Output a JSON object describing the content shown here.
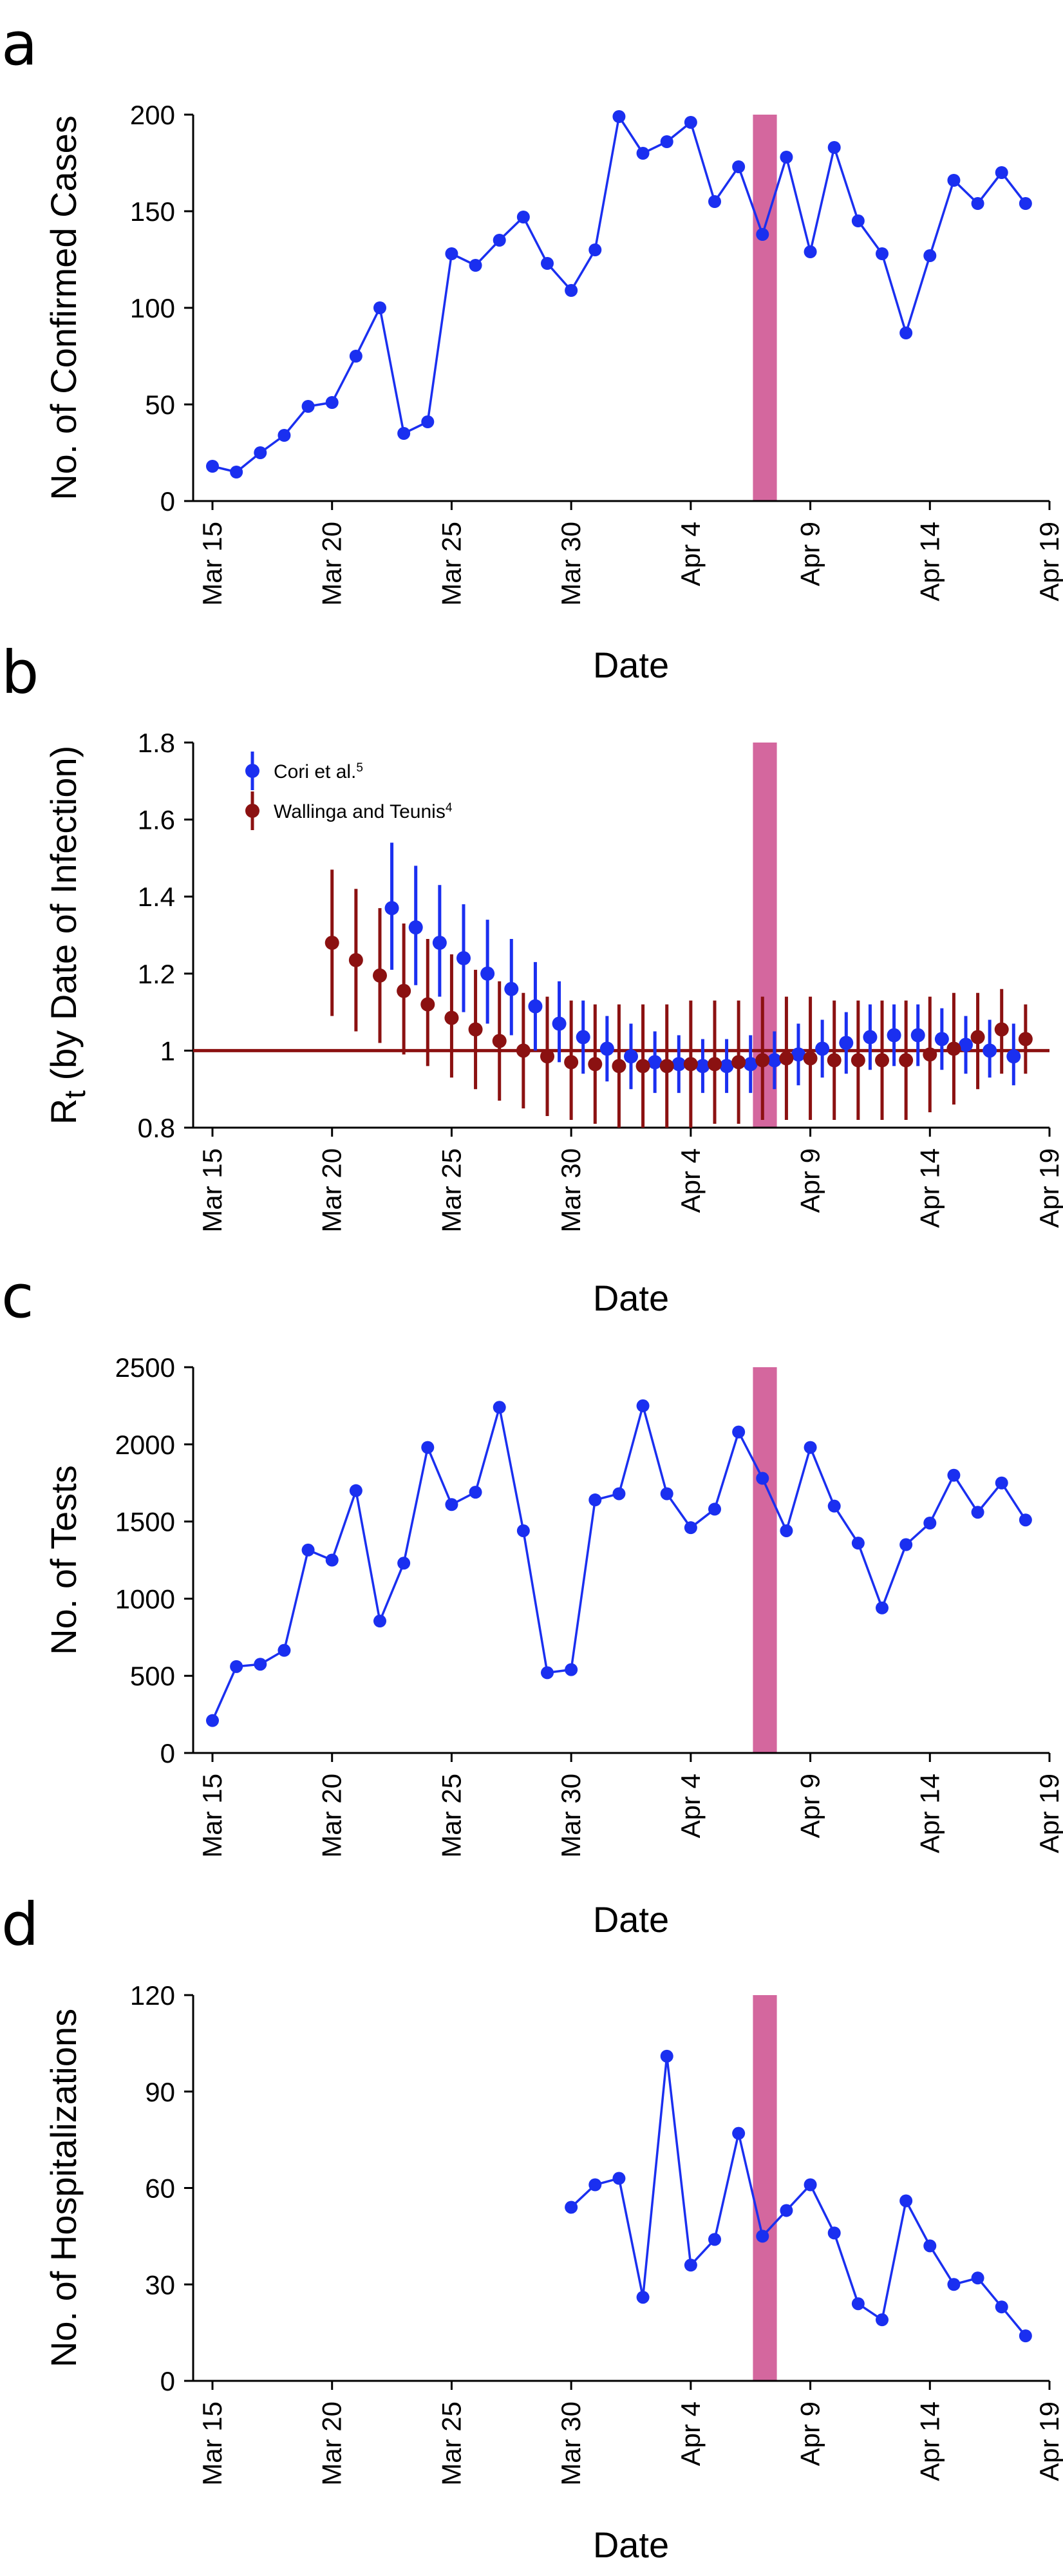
{
  "colors": {
    "blue": "#1a2ff0",
    "darkred": "#8b1111",
    "highlight": "#d4679e",
    "axis": "#000000"
  },
  "chart_data": [
    {
      "panel_letter": "a",
      "type": "line",
      "xlabel": "Date",
      "ylabel": "No. of Confirmed Cases",
      "x_ticks": [
        "Mar 15",
        "Mar 20",
        "Mar 25",
        "Mar 30",
        "Apr 4",
        "Apr 9",
        "Apr 14",
        "Apr 19"
      ],
      "xlim": [
        0,
        35
      ],
      "ylim": [
        0,
        200
      ],
      "yticks": [
        "0",
        "50",
        "100",
        "150",
        "200"
      ],
      "highlight_band": [
        22.6,
        23.6
      ],
      "series": [
        {
          "name": "Confirmed cases",
          "x": [
            0,
            1,
            2,
            3,
            4,
            5,
            6,
            7,
            8,
            9,
            10,
            11,
            12,
            13,
            14,
            15,
            16,
            17,
            18,
            19,
            20,
            21,
            22,
            23,
            24,
            25,
            26,
            27,
            28,
            29,
            30,
            31,
            32,
            33,
            34
          ],
          "y": [
            18,
            15,
            25,
            34,
            49,
            51,
            75,
            100,
            35,
            41,
            128,
            122,
            135,
            147,
            123,
            109,
            130,
            199,
            180,
            186,
            196,
            155,
            173,
            138,
            178,
            129,
            183,
            145,
            128,
            87,
            127,
            166,
            154,
            170,
            154
          ]
        }
      ]
    },
    {
      "panel_letter": "b",
      "type": "scatter",
      "xlabel": "Date",
      "ylabel_main": "R",
      "ylabel_sub": "t",
      "ylabel_rest": " (by Date of Infection)",
      "x_ticks": [
        "Mar 15",
        "Mar 20",
        "Mar 25",
        "Mar 30",
        "Apr 4",
        "Apr 9",
        "Apr 14",
        "Apr 19"
      ],
      "xlim": [
        0,
        35
      ],
      "ylim": [
        0.8,
        1.8
      ],
      "yticks": [
        "0.8",
        "1",
        "1.2",
        "1.4",
        "1.6",
        "1.8"
      ],
      "reference_line": 1,
      "highlight_band": [
        22.6,
        23.6
      ],
      "legend": [
        {
          "label": "Cori et al.",
          "sup": "5"
        },
        {
          "label": "Wallinga and Teunis",
          "sup": "4"
        }
      ],
      "series": [
        {
          "name": "Cori et al.",
          "x": [
            7.5,
            8.5,
            9.5,
            10.5,
            11.5,
            12.5,
            13.5,
            14.5,
            15.5,
            16.5,
            17.5,
            18.5,
            19.5,
            20.5,
            21.5,
            22.5,
            23.5,
            24.5,
            25.5,
            26.5,
            27.5,
            28.5,
            29.5,
            30.5,
            31.5,
            32.5,
            33.5
          ],
          "y": [
            1.37,
            1.32,
            1.28,
            1.24,
            1.2,
            1.16,
            1.115,
            1.07,
            1.035,
            1.005,
            0.985,
            0.97,
            0.965,
            0.96,
            0.96,
            0.965,
            0.975,
            0.99,
            1.005,
            1.02,
            1.035,
            1.04,
            1.04,
            1.03,
            1.015,
            1.0,
            0.985
          ],
          "lower": [
            1.21,
            1.17,
            1.14,
            1.1,
            1.07,
            1.04,
            1.0,
            0.97,
            0.94,
            0.92,
            0.9,
            0.89,
            0.89,
            0.89,
            0.89,
            0.89,
            0.9,
            0.91,
            0.93,
            0.94,
            0.95,
            0.96,
            0.96,
            0.95,
            0.94,
            0.93,
            0.91
          ],
          "upper": [
            1.54,
            1.48,
            1.43,
            1.38,
            1.34,
            1.29,
            1.23,
            1.18,
            1.13,
            1.09,
            1.07,
            1.05,
            1.04,
            1.03,
            1.03,
            1.04,
            1.05,
            1.07,
            1.08,
            1.1,
            1.12,
            1.12,
            1.12,
            1.11,
            1.09,
            1.08,
            1.07
          ]
        },
        {
          "name": "Wallinga and Teunis",
          "x": [
            5,
            6,
            7,
            8,
            9,
            10,
            11,
            12,
            13,
            14,
            15,
            16,
            17,
            18,
            19,
            20,
            21,
            22,
            23,
            24,
            25,
            26,
            27,
            28,
            29,
            30,
            31,
            32,
            33,
            34
          ],
          "y": [
            1.28,
            1.235,
            1.195,
            1.155,
            1.12,
            1.085,
            1.055,
            1.025,
            1.0,
            0.985,
            0.97,
            0.965,
            0.96,
            0.96,
            0.96,
            0.965,
            0.965,
            0.97,
            0.975,
            0.98,
            0.98,
            0.975,
            0.975,
            0.975,
            0.975,
            0.99,
            1.005,
            1.035,
            1.055,
            1.03
          ],
          "lower": [
            1.09,
            1.05,
            1.02,
            0.99,
            0.96,
            0.93,
            0.9,
            0.87,
            0.85,
            0.83,
            0.82,
            0.81,
            0.8,
            0.8,
            0.8,
            0.8,
            0.81,
            0.81,
            0.82,
            0.82,
            0.82,
            0.82,
            0.82,
            0.82,
            0.82,
            0.84,
            0.86,
            0.9,
            0.94,
            0.94
          ],
          "upper": [
            1.47,
            1.42,
            1.37,
            1.33,
            1.29,
            1.25,
            1.21,
            1.18,
            1.15,
            1.14,
            1.13,
            1.12,
            1.12,
            1.12,
            1.12,
            1.13,
            1.13,
            1.13,
            1.14,
            1.14,
            1.14,
            1.13,
            1.13,
            1.13,
            1.13,
            1.14,
            1.15,
            1.15,
            1.16,
            1.12
          ]
        }
      ]
    },
    {
      "panel_letter": "c",
      "type": "line",
      "xlabel": "Date",
      "ylabel": "No. of Tests",
      "x_ticks": [
        "Mar 15",
        "Mar 20",
        "Mar 25",
        "Mar 30",
        "Apr 4",
        "Apr 9",
        "Apr 14",
        "Apr 19"
      ],
      "xlim": [
        0,
        35
      ],
      "ylim": [
        0,
        2500
      ],
      "yticks": [
        "0",
        "500",
        "1000",
        "1500",
        "2000",
        "2500"
      ],
      "highlight_band": [
        22.6,
        23.6
      ],
      "series": [
        {
          "name": "Tests",
          "x": [
            0,
            1,
            2,
            3,
            4,
            5,
            6,
            7,
            8,
            9,
            10,
            11,
            12,
            13,
            14,
            15,
            16,
            17,
            18,
            19,
            20,
            21,
            22,
            23,
            24,
            25,
            26,
            27,
            28,
            29,
            30,
            31,
            32,
            33,
            34
          ],
          "y": [
            210,
            560,
            575,
            665,
            1315,
            1250,
            1700,
            855,
            1230,
            1980,
            1610,
            1690,
            2240,
            1440,
            520,
            540,
            1640,
            1680,
            2250,
            1680,
            1460,
            1580,
            2080,
            1780,
            1440,
            1980,
            1600,
            1360,
            940,
            1350,
            1490,
            1800,
            1560,
            1750,
            1510
          ]
        }
      ]
    },
    {
      "panel_letter": "d",
      "type": "line",
      "xlabel": "Date",
      "ylabel": "No. of Hospitalizations",
      "x_ticks": [
        "Mar 15",
        "Mar 20",
        "Mar 25",
        "Mar 30",
        "Apr 4",
        "Apr 9",
        "Apr 14",
        "Apr 19"
      ],
      "xlim": [
        0,
        35
      ],
      "ylim": [
        0,
        120
      ],
      "yticks": [
        "0",
        "30",
        "60",
        "90",
        "120"
      ],
      "highlight_band": [
        22.6,
        23.6
      ],
      "series": [
        {
          "name": "Hospitalizations",
          "x": [
            15,
            16,
            17,
            18,
            19,
            20,
            21,
            22,
            23,
            24,
            25,
            26,
            27,
            28,
            29,
            30,
            31,
            32,
            33,
            34
          ],
          "y": [
            54,
            61,
            63,
            26,
            101,
            36,
            44,
            77,
            45,
            53,
            61,
            46,
            24,
            19,
            56,
            42,
            30,
            32,
            23,
            14
          ]
        }
      ]
    }
  ]
}
